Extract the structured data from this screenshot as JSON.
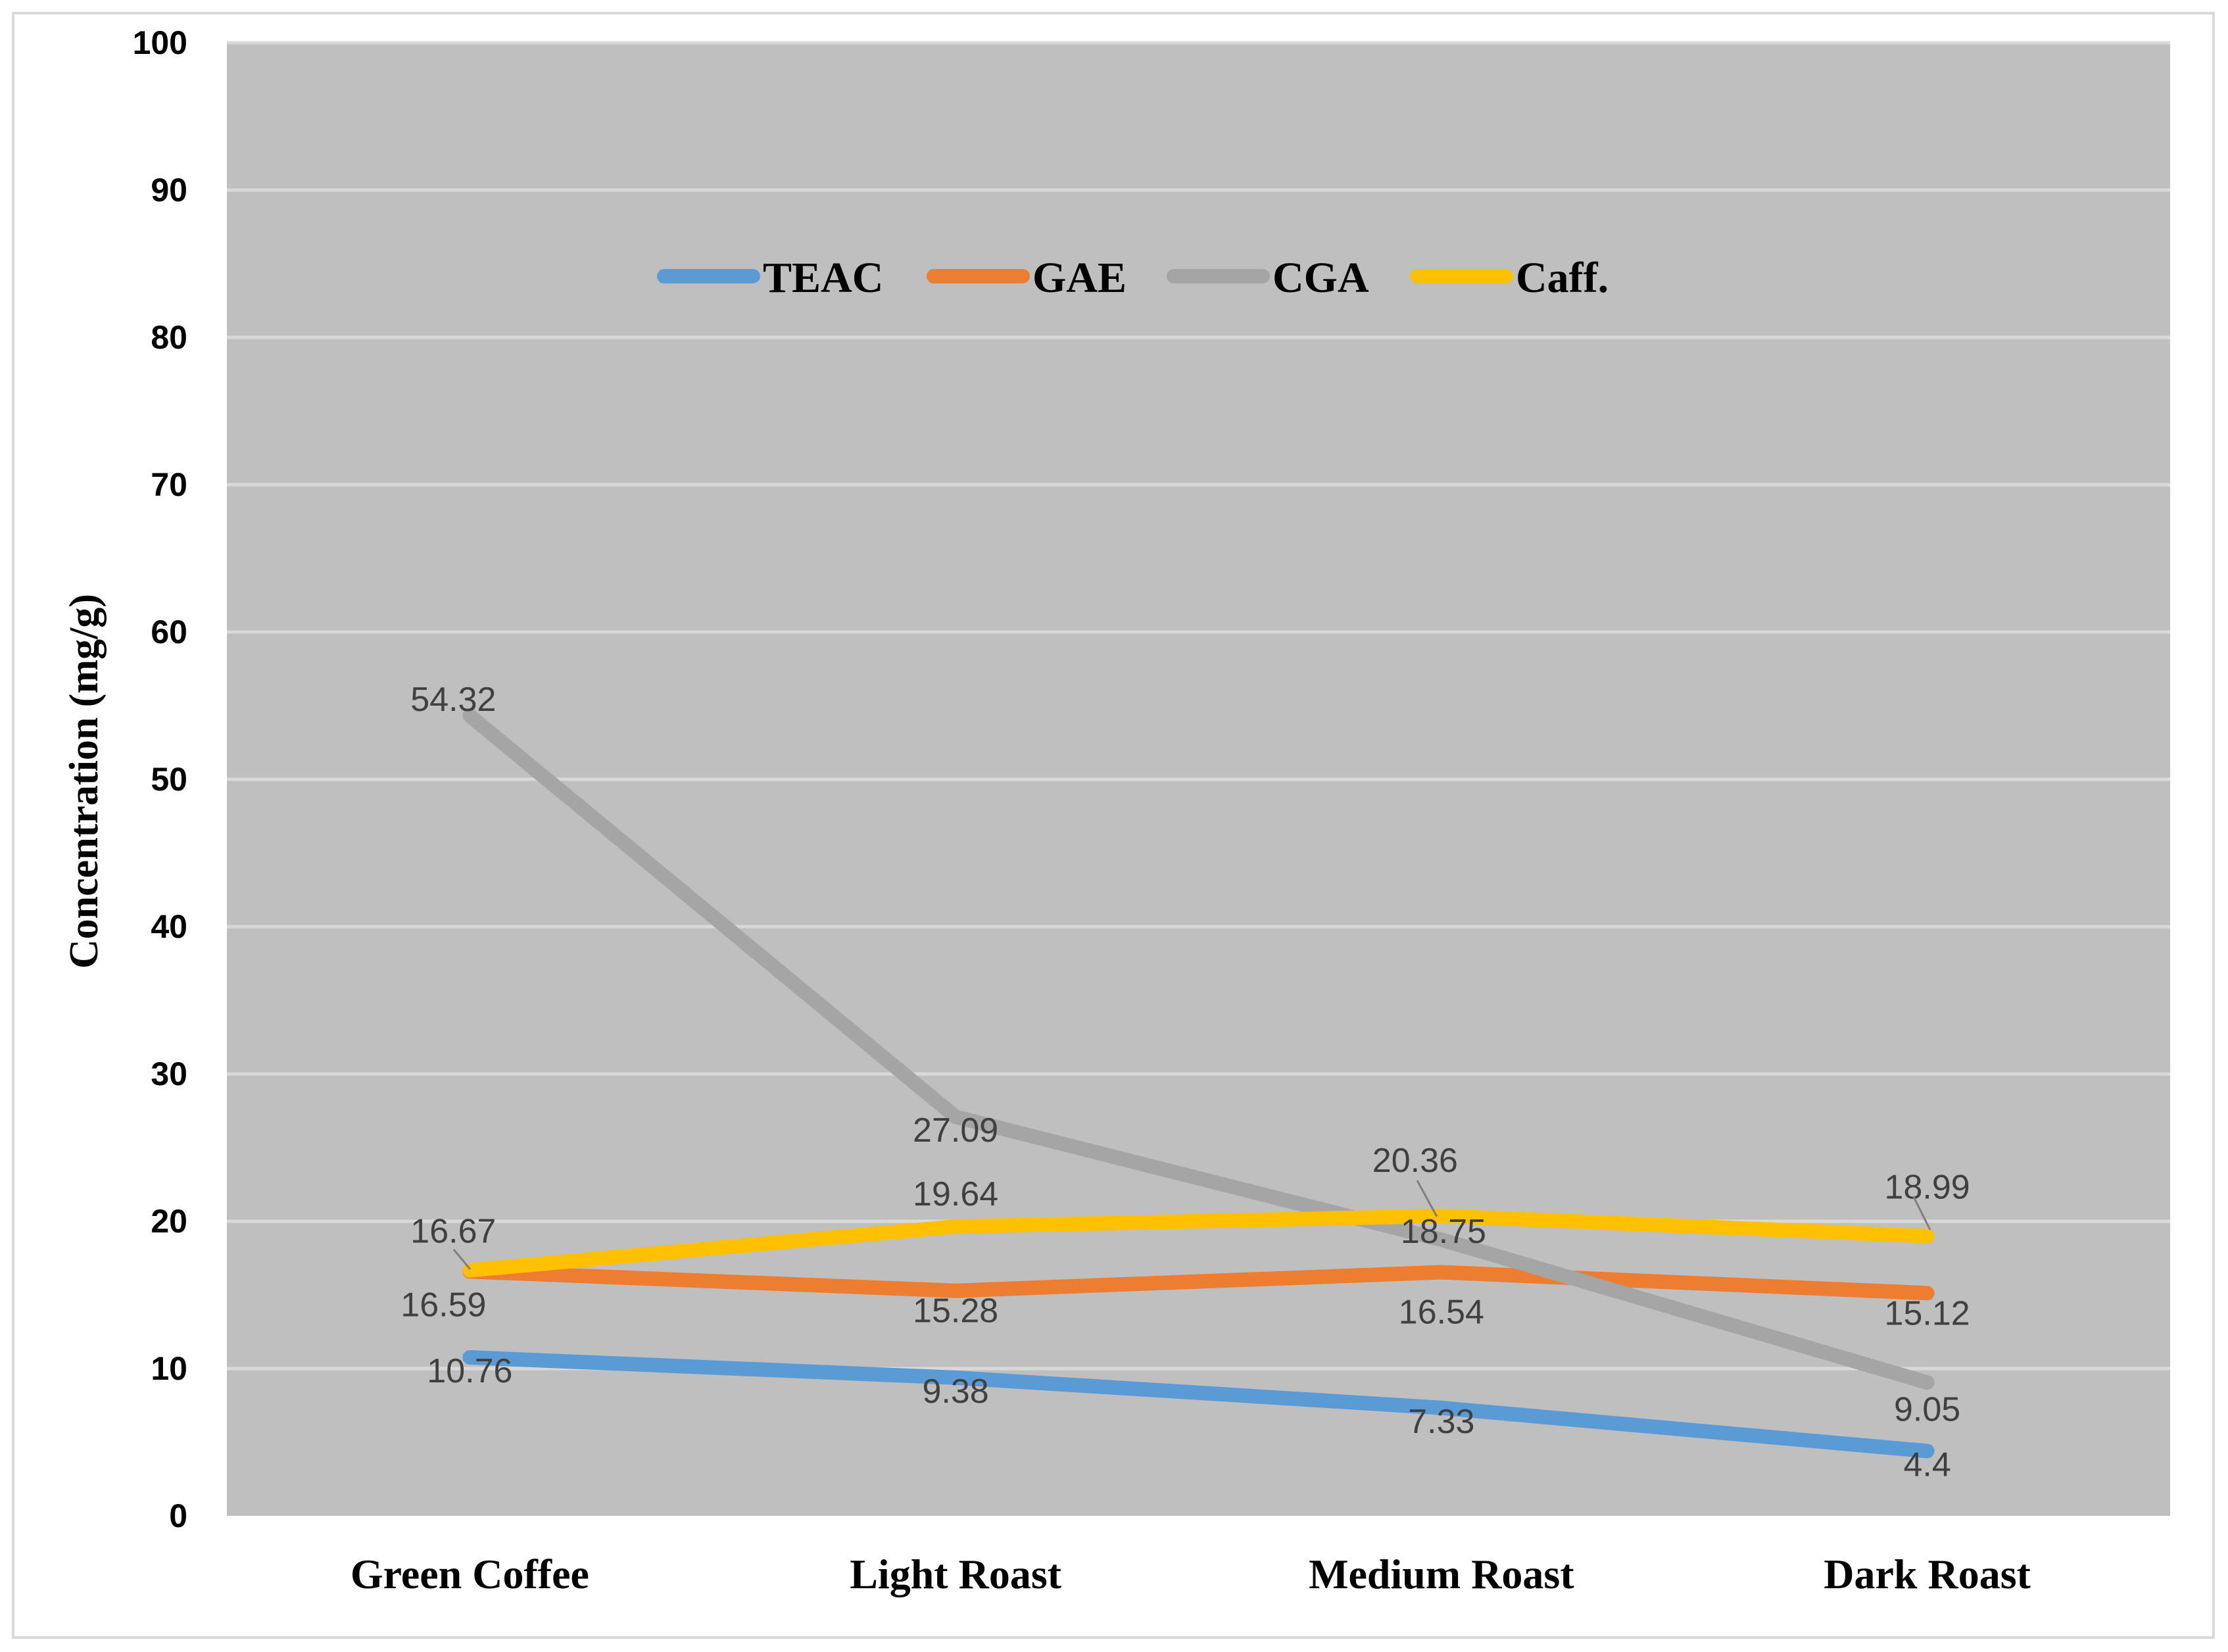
{
  "chart_data": {
    "type": "line",
    "title": "",
    "xlabel": "",
    "ylabel": "Concentration (mg/g)",
    "ylim": [
      0,
      100
    ],
    "yticks": [
      0,
      10,
      20,
      30,
      40,
      50,
      60,
      70,
      80,
      90,
      100
    ],
    "grid": true,
    "legend": "top-center",
    "plot_background": "#bfbfbf",
    "categories": [
      "Green Coffee",
      "Light Roast",
      "Medium Roast",
      "Dark Roast"
    ],
    "series": [
      {
        "name": "TEAC",
        "color": "#5b9bd5",
        "values": [
          10.76,
          9.38,
          7.33,
          4.4
        ]
      },
      {
        "name": "GAE",
        "color": "#ed7d31",
        "values": [
          16.59,
          15.28,
          16.54,
          15.12
        ]
      },
      {
        "name": "CGA",
        "color": "#a5a5a5",
        "values": [
          54.32,
          27.09,
          18.75,
          9.05
        ]
      },
      {
        "name": "Caff.",
        "color": "#ffc000",
        "values": [
          16.67,
          19.64,
          20.36,
          18.99
        ]
      }
    ]
  }
}
